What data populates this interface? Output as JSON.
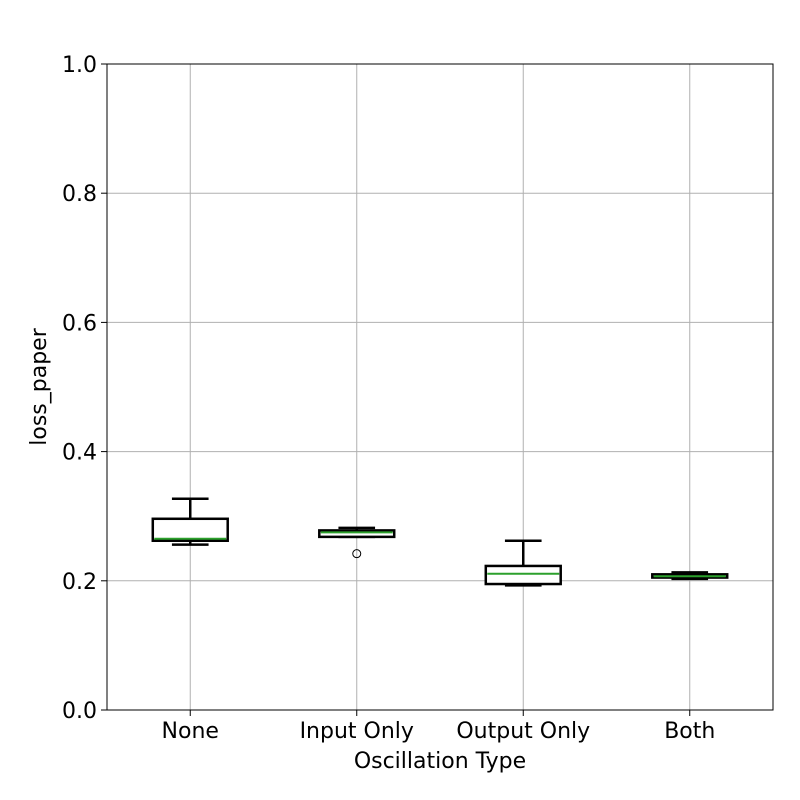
{
  "chart_data": {
    "type": "box",
    "title": "",
    "xlabel": "Oscillation Type",
    "ylabel": "loss_paper",
    "ylim": [
      0.0,
      1.0
    ],
    "yticks": [
      "0.0",
      "0.2",
      "0.4",
      "0.6",
      "0.8",
      "1.0"
    ],
    "grid": true,
    "categories": [
      "None",
      "Input Only",
      "Output Only",
      "Both"
    ],
    "boxes": [
      {
        "category": "None",
        "whisker_low": 0.256,
        "q1": 0.262,
        "median": 0.265,
        "q3": 0.296,
        "whisker_high": 0.327,
        "outliers": []
      },
      {
        "category": "Input Only",
        "whisker_low": 0.268,
        "q1": 0.268,
        "median": 0.275,
        "q3": 0.278,
        "whisker_high": 0.282,
        "outliers": [
          0.242
        ]
      },
      {
        "category": "Output Only",
        "whisker_low": 0.193,
        "q1": 0.195,
        "median": 0.211,
        "q3": 0.223,
        "whisker_high": 0.262,
        "outliers": []
      },
      {
        "category": "Both",
        "whisker_low": 0.203,
        "q1": 0.205,
        "median": 0.207,
        "q3": 0.21,
        "whisker_high": 0.213,
        "outliers": []
      }
    ],
    "colors": {
      "box": "#000000",
      "median": "#2ca02c",
      "grid": "#b0b0b0"
    }
  }
}
